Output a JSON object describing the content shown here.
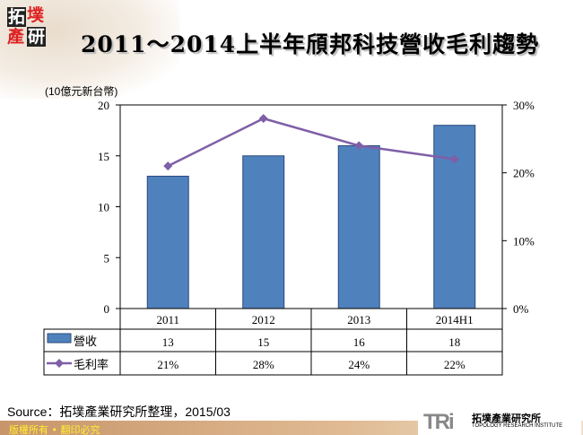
{
  "logo": {
    "chars": [
      "拓",
      "墣",
      "產",
      "研"
    ]
  },
  "title": "2011～2014上半年頎邦科技營收毛利趨勢",
  "unit_label": "(10億元新台幣)",
  "chart_data": {
    "type": "bar+line",
    "title": "2011～2014上半年頎邦科技營收毛利趨勢",
    "categories": [
      "2011",
      "2012",
      "2013",
      "2014H1"
    ],
    "series": [
      {
        "name": "營收",
        "type": "bar",
        "axis": "left",
        "values": [
          13,
          15,
          16,
          18
        ],
        "labels": [
          "13",
          "15",
          "16",
          "18"
        ],
        "color": "#4f81bd"
      },
      {
        "name": "毛利率",
        "type": "line",
        "axis": "right",
        "values": [
          21,
          28,
          24,
          22
        ],
        "labels": [
          "21%",
          "28%",
          "24%",
          "22%"
        ],
        "color": "#7f5fa8"
      }
    ],
    "ylabel": "(10億元新台幣)",
    "ylim": [
      0,
      20
    ],
    "yticks": [
      "0",
      "5",
      "10",
      "15",
      "20"
    ],
    "y2lim": [
      0,
      30
    ],
    "y2ticks": [
      "0%",
      "10%",
      "20%",
      "30%"
    ],
    "grid": false,
    "legend": "data-table"
  },
  "source": "Source：拓墣產業研究所整理，2015/03",
  "footer": {
    "copyright": "版權所有 • 翻印必究",
    "org_mark": "TRi",
    "org_name": "拓墣產業研究所",
    "org_en": "TOPOLOGY RESEARCH INSTITUTE"
  }
}
